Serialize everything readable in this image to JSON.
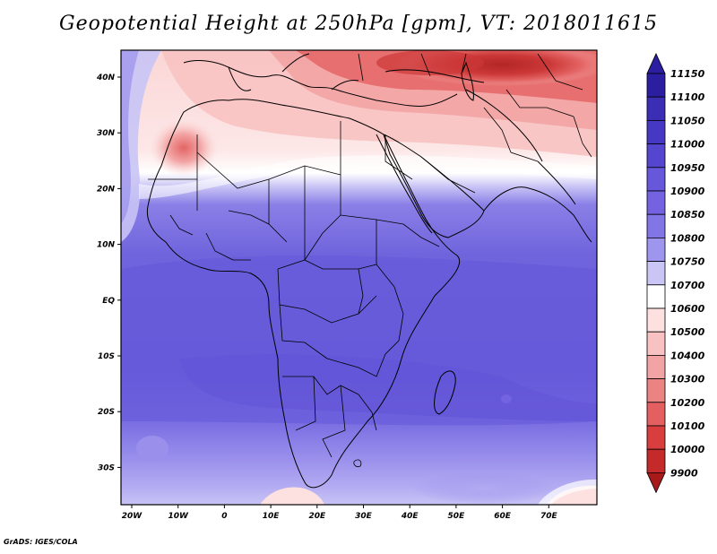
{
  "title": "Geopotential Height at 250hPa [gpm], VT: 2018011615",
  "credit": "GrADS: IGES/COLA",
  "lat_labels": [
    "40N",
    "30N",
    "20N",
    "10N",
    "EQ",
    "10S",
    "20S",
    "30S"
  ],
  "lon_labels": [
    "20W",
    "10W",
    "0",
    "10E",
    "20E",
    "30E",
    "40E",
    "50E",
    "60E",
    "70E"
  ],
  "colorbar": {
    "levels": [
      "11150",
      "11100",
      "11050",
      "11000",
      "10950",
      "10900",
      "10850",
      "10800",
      "10750",
      "10700",
      "10600",
      "10500",
      "10400",
      "10300",
      "10200",
      "10100",
      "10000",
      "9900"
    ],
    "colors": [
      "#2c1ea0",
      "#3b2db4",
      "#4738c3",
      "#5546cf",
      "#6657db",
      "#7363e0",
      "#8275e6",
      "#9e95ee",
      "#c9c6f6",
      "#ffffff",
      "#fde0e0",
      "#f8c2c2",
      "#f2a3a3",
      "#ec8383",
      "#e45f5f",
      "#d93e3e",
      "#c52a2a",
      "#a81a1a"
    ]
  },
  "map_colors": {
    "deep_blue": "#6a5ddb",
    "mid_blue": "#7a6ee2",
    "light_blue": "#9a90ec",
    "pale_blue": "#c8c4f5",
    "white": "#ffffff",
    "pale_red": "#fbd6d6",
    "light_red": "#f3a6a6",
    "mid_red": "#e46565",
    "deep_red": "#cc3838",
    "darkest_red": "#b32626"
  }
}
